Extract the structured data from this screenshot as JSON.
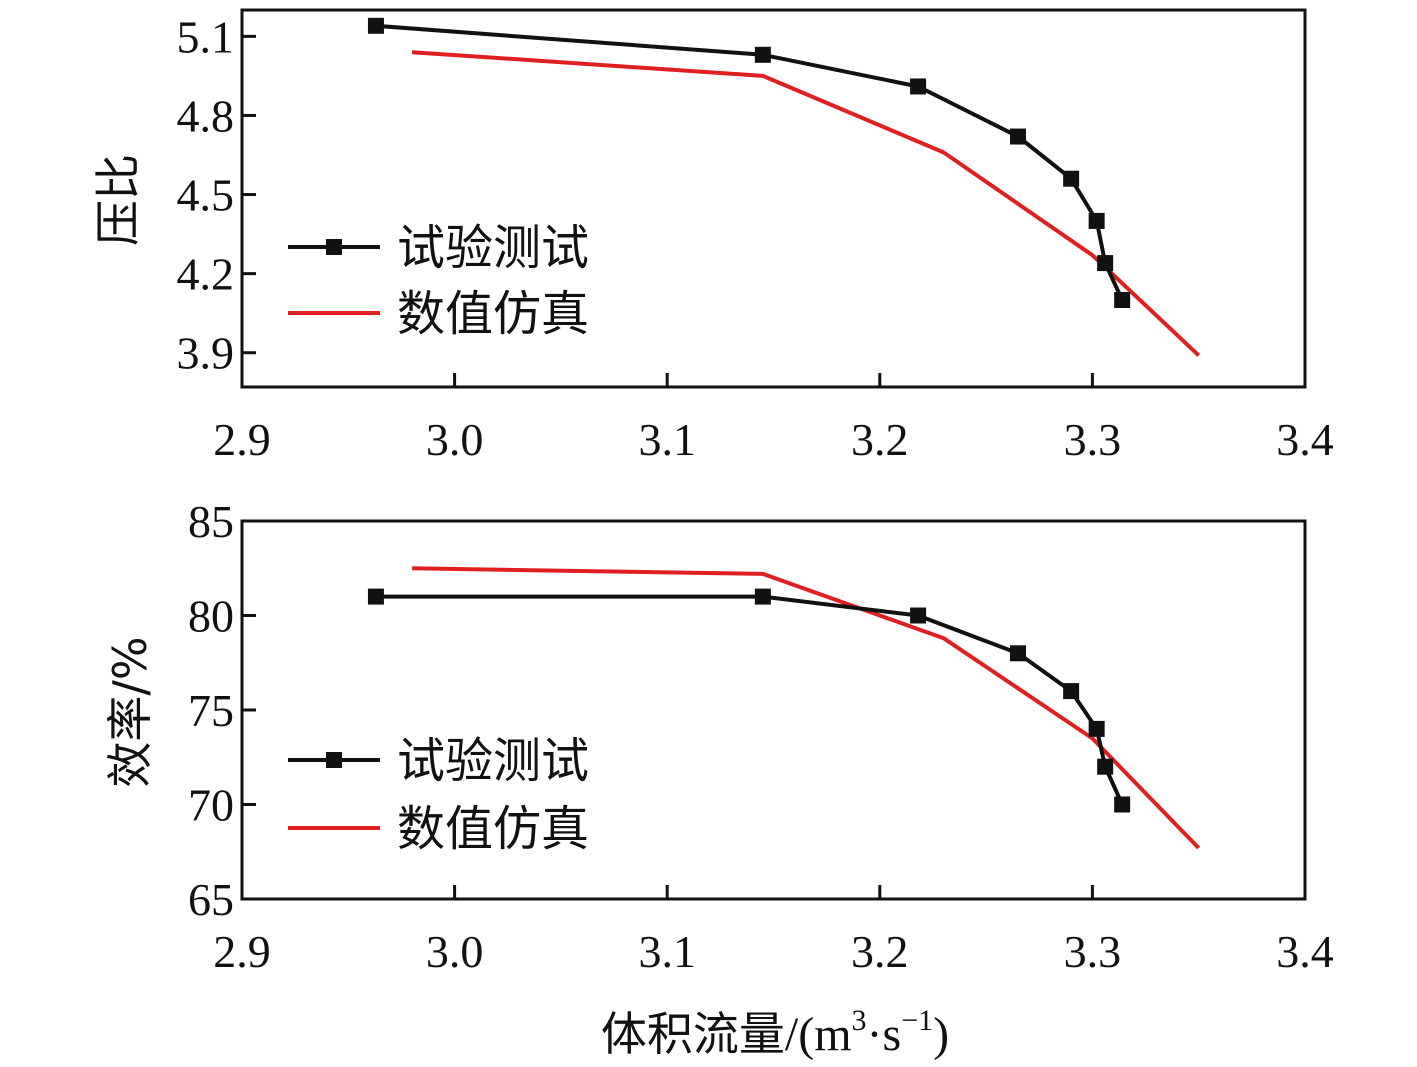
{
  "chart_data": [
    {
      "type": "line",
      "ylabel": "压比",
      "xlim": [
        2.9,
        3.4
      ],
      "xticks": [
        "2.9",
        "3.0",
        "3.1",
        "3.2",
        "3.3",
        "3.4"
      ],
      "ylim": [
        3.77,
        5.2
      ],
      "yticks": [
        "3.9",
        "4.2",
        "4.5",
        "4.8",
        "5.1"
      ],
      "series": [
        {
          "name": "试验测试",
          "color": "#111111",
          "marker": "square",
          "x": [
            2.963,
            3.145,
            3.218,
            3.265,
            3.29,
            3.302,
            3.306,
            3.314
          ],
          "y": [
            5.14,
            5.03,
            4.91,
            4.72,
            4.56,
            4.4,
            4.24,
            4.1
          ]
        },
        {
          "name": "数值仿真",
          "color": "#e02020",
          "marker": "none",
          "x": [
            2.98,
            3.145,
            3.23,
            3.3,
            3.35
          ],
          "y": [
            5.04,
            4.95,
            4.66,
            4.27,
            3.89
          ]
        }
      ],
      "legend": {
        "position": "left"
      }
    },
    {
      "type": "line",
      "ylabel": "效率/%",
      "xlim": [
        2.9,
        3.4
      ],
      "xticks": [
        "2.9",
        "3.0",
        "3.1",
        "3.2",
        "3.3",
        "3.4"
      ],
      "ylim": [
        65,
        85
      ],
      "yticks": [
        "65",
        "70",
        "75",
        "80",
        "85"
      ],
      "series": [
        {
          "name": "试验测试",
          "color": "#111111",
          "marker": "square",
          "x": [
            2.963,
            3.145,
            3.218,
            3.265,
            3.29,
            3.302,
            3.306,
            3.314
          ],
          "y": [
            81,
            81,
            80,
            78,
            76,
            74,
            72,
            70
          ]
        },
        {
          "name": "数值仿真",
          "color": "#e02020",
          "marker": "none",
          "x": [
            2.98,
            3.145,
            3.23,
            3.3,
            3.35
          ],
          "y": [
            82.5,
            82.2,
            78.8,
            73.5,
            67.7
          ]
        }
      ],
      "legend": {
        "position": "left"
      }
    }
  ],
  "xlabel": {
    "text": "体积流量",
    "unit_prefix": "/(m",
    "sup1": "3",
    "unit_mid": "·s",
    "sup2": "−1",
    "unit_suffix": ")"
  }
}
